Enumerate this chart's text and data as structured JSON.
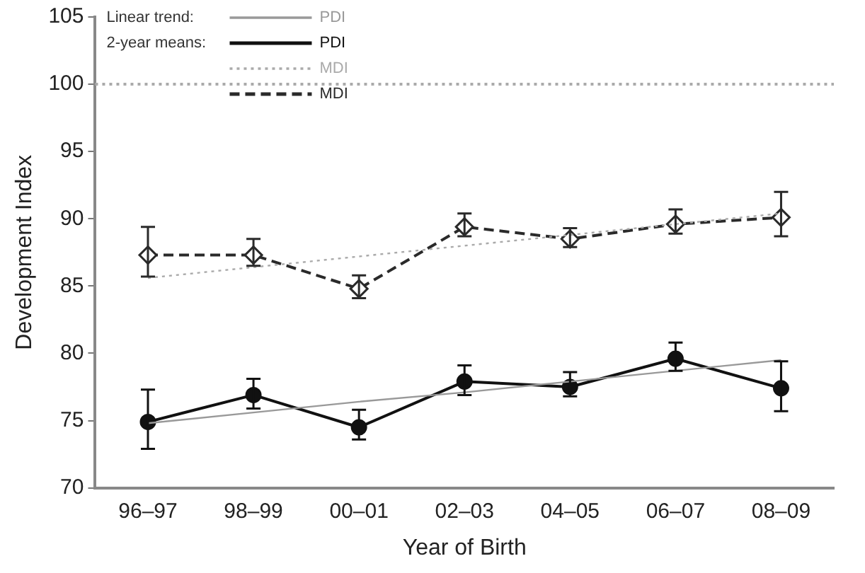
{
  "chart_data": {
    "type": "line",
    "xlabel": "Year of Birth",
    "ylabel": "Development Index",
    "categories": [
      "96–97",
      "98–99",
      "00–01",
      "02–03",
      "04–05",
      "06–07",
      "08–09"
    ],
    "ylim": [
      70,
      105
    ],
    "yticks": [
      70,
      75,
      80,
      85,
      90,
      95,
      100,
      105
    ],
    "grid": false,
    "legend": "top left",
    "annotations": [
      "Linear trend:",
      "2-year means:"
    ],
    "ref_lines": [
      {
        "axis": "y",
        "value": 100,
        "color": "#aaaaaa",
        "line_style": "dotted"
      }
    ],
    "series": [
      {
        "name": "PDI",
        "color": "#999999",
        "line_style": "solid",
        "marker": "none",
        "values": [
          74.8,
          75.6,
          76.4,
          77.1,
          77.9,
          78.7,
          79.5
        ]
      },
      {
        "name": "MDI",
        "color": "#aaaaaa",
        "line_style": "dotted",
        "marker": "none",
        "values": [
          85.6,
          86.4,
          87.2,
          88.0,
          88.8,
          89.6,
          90.4
        ]
      },
      {
        "name": "PDI",
        "color": "#111111",
        "line_style": "solid",
        "marker": "circle",
        "values": [
          74.9,
          76.9,
          74.5,
          77.9,
          77.5,
          79.6,
          77.4
        ],
        "errors": [
          [
            72.9,
            77.3
          ],
          [
            75.9,
            78.1
          ],
          [
            73.6,
            75.8
          ],
          [
            76.9,
            79.1
          ],
          [
            76.8,
            78.6
          ],
          [
            78.7,
            80.8
          ],
          [
            75.7,
            79.4
          ]
        ]
      },
      {
        "name": "MDI",
        "color": "#2a2a2a",
        "line_style": "dashed",
        "marker": "diamond",
        "values": [
          87.3,
          87.3,
          84.8,
          89.4,
          88.5,
          89.6,
          90.1
        ],
        "errors": [
          [
            85.7,
            89.4
          ],
          [
            86.5,
            88.5
          ],
          [
            84.1,
            85.8
          ],
          [
            88.7,
            90.4
          ],
          [
            87.9,
            89.3
          ],
          [
            88.9,
            90.7
          ],
          [
            88.7,
            92.0
          ]
        ]
      }
    ]
  }
}
